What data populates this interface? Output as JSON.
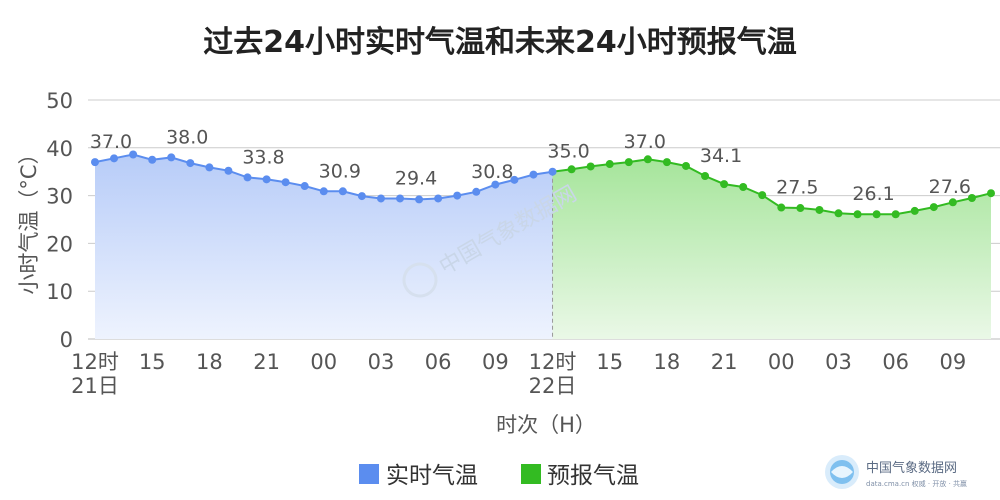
{
  "chart_data": {
    "type": "area",
    "title": "过去24小时实时气温和未来24小时预报气温",
    "xlabel": "时次（H）",
    "ylabel": "小时气温（°C）",
    "ylim": [
      0,
      50
    ],
    "yticks": [
      0,
      10,
      20,
      30,
      40,
      50
    ],
    "grid": true,
    "legend_position": "bottom",
    "xticks": [
      {
        "i": 0,
        "label": "12时",
        "sub": "21日"
      },
      {
        "i": 3,
        "label": "15"
      },
      {
        "i": 6,
        "label": "18"
      },
      {
        "i": 9,
        "label": "21"
      },
      {
        "i": 12,
        "label": "00"
      },
      {
        "i": 15,
        "label": "03"
      },
      {
        "i": 18,
        "label": "06"
      },
      {
        "i": 21,
        "label": "09"
      },
      {
        "i": 24,
        "label": "12时",
        "sub": "22日"
      },
      {
        "i": 27,
        "label": "15"
      },
      {
        "i": 30,
        "label": "18"
      },
      {
        "i": 33,
        "label": "21"
      },
      {
        "i": 36,
        "label": "00"
      },
      {
        "i": 39,
        "label": "03"
      },
      {
        "i": 42,
        "label": "06"
      },
      {
        "i": 45,
        "label": "09"
      }
    ],
    "series": [
      {
        "name": "实时气温",
        "color": "#5b8def",
        "fill": "#c9d8fb",
        "x": [
          0,
          1,
          2,
          3,
          4,
          5,
          6,
          7,
          8,
          9,
          10,
          11,
          12,
          13,
          14,
          15,
          16,
          17,
          18,
          19,
          20,
          21,
          22,
          23,
          24
        ],
        "values": [
          37.0,
          37.8,
          38.6,
          37.5,
          38.0,
          36.8,
          35.9,
          35.2,
          33.8,
          33.4,
          32.8,
          32.0,
          30.9,
          30.9,
          29.9,
          29.4,
          29.4,
          29.2,
          29.4,
          30.0,
          30.8,
          32.3,
          33.3,
          34.4,
          35.0
        ]
      },
      {
        "name": "预报气温",
        "color": "#33bb22",
        "fill": "#c4eebc",
        "x": [
          24,
          25,
          26,
          27,
          28,
          29,
          30,
          31,
          32,
          33,
          34,
          35,
          36,
          37,
          38,
          39,
          40,
          41,
          42,
          43,
          44,
          45,
          46,
          47
        ],
        "values": [
          35.0,
          35.5,
          36.1,
          36.6,
          37.0,
          37.6,
          37.0,
          36.2,
          34.1,
          32.4,
          31.8,
          30.1,
          27.5,
          27.4,
          27.0,
          26.3,
          26.1,
          26.1,
          26.1,
          26.8,
          27.6,
          28.6,
          29.5,
          30.5
        ]
      }
    ],
    "data_labels": [
      {
        "x": 0,
        "text": "37.0"
      },
      {
        "x": 4,
        "text": "38.0"
      },
      {
        "x": 8,
        "text": "33.8"
      },
      {
        "x": 12,
        "text": "30.9"
      },
      {
        "x": 16,
        "text": "29.4"
      },
      {
        "x": 20,
        "text": "30.8"
      },
      {
        "x": 24,
        "text": "35.0"
      },
      {
        "x": 28,
        "text": "37.0"
      },
      {
        "x": 32,
        "text": "34.1"
      },
      {
        "x": 36,
        "text": "27.5"
      },
      {
        "x": 40,
        "text": "26.1"
      },
      {
        "x": 44,
        "text": "27.6"
      }
    ]
  },
  "watermark": {
    "text": "中国气象数据网"
  },
  "logo": {
    "name": "中国气象数据网",
    "url": "data.cma.cn 权威 · 开放 · 共赢"
  }
}
